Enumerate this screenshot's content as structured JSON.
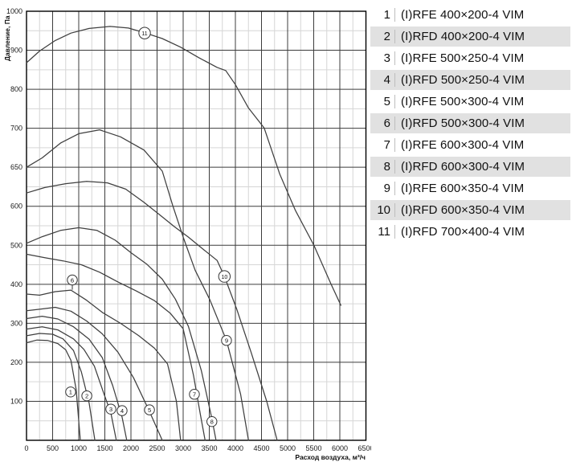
{
  "legend": {
    "rows": [
      {
        "num": "1",
        "label": "(I)RFE 400×200-4 VIM",
        "shaded": false
      },
      {
        "num": "2",
        "label": "(I)RFD 400×200-4 VIM",
        "shaded": true
      },
      {
        "num": "3",
        "label": "(I)RFE 500×250-4 VIM",
        "shaded": false
      },
      {
        "num": "4",
        "label": "(I)RFD 500×250-4 VIM",
        "shaded": true
      },
      {
        "num": "5",
        "label": "(I)RFE 500×300-4 VIM",
        "shaded": false
      },
      {
        "num": "6",
        "label": "(I)RFD 500×300-4 VIM",
        "shaded": true
      },
      {
        "num": "7",
        "label": "(I)RFE 600×300-4 VIM",
        "shaded": false
      },
      {
        "num": "8",
        "label": "(I)RFD 600×300-4 VIM",
        "shaded": true
      },
      {
        "num": "9",
        "label": "(I)RFE 600×350-4 VIM",
        "shaded": false
      },
      {
        "num": "10",
        "label": "(I)RFD 600×350-4 VIM",
        "shaded": true
      },
      {
        "num": "11",
        "label": "(I)RFD 700×400-4 VIM",
        "shaded": false
      }
    ]
  },
  "chart_data": {
    "type": "line",
    "title": "",
    "xlabel": "Расход воздуха, м³/ч",
    "ylabel": "Давление, Па",
    "xlim": [
      0,
      6500
    ],
    "x_major_step": 500,
    "x_minor_step": 250,
    "x_tick_labels": [
      "0",
      "500",
      "1000",
      "1500",
      "2000",
      "2500",
      "3000",
      "3500",
      "4000",
      "4500",
      "5000",
      "5500",
      "6000",
      "6500"
    ],
    "y_tick_values": [
      1000,
      900,
      800,
      700,
      650,
      600,
      500,
      400,
      300,
      200,
      100,
      0
    ],
    "y_tick_labeled": [
      1000,
      900,
      800,
      700,
      650,
      600,
      500,
      400,
      300,
      200,
      100
    ],
    "y_axis_note": "labeled ticks drawn equally spaced (non-uniform pressure scale), bottom line = 0 Pa unlabeled, minor gridline at midpoint of each step",
    "grid": true,
    "legend_position": "right-table",
    "series": [
      {
        "name": "(I)RFE 400×200-4 VIM",
        "marker": "1",
        "marker_at": [
          845,
          124
        ],
        "points": [
          [
            0,
            250
          ],
          [
            200,
            257
          ],
          [
            400,
            256
          ],
          [
            600,
            248
          ],
          [
            750,
            232
          ],
          [
            850,
            205
          ],
          [
            950,
            130
          ],
          [
            1030,
            0
          ]
        ]
      },
      {
        "name": "(I)RFD 400×200-4 VIM",
        "marker": "2",
        "marker_at": [
          1155,
          114
        ],
        "points": [
          [
            0,
            268
          ],
          [
            250,
            274
          ],
          [
            500,
            272
          ],
          [
            700,
            260
          ],
          [
            900,
            230
          ],
          [
            1050,
            175
          ],
          [
            1200,
            95
          ],
          [
            1310,
            0
          ]
        ]
      },
      {
        "name": "(I)RFE 500×250-4 VIM",
        "marker": "3",
        "marker_at": [
          1615,
          80
        ],
        "points": [
          [
            0,
            285
          ],
          [
            300,
            291
          ],
          [
            600,
            283
          ],
          [
            900,
            260
          ],
          [
            1100,
            233
          ],
          [
            1300,
            190
          ],
          [
            1480,
            120
          ],
          [
            1615,
            70
          ],
          [
            1720,
            0
          ]
        ]
      },
      {
        "name": "(I)RFD 500×250-4 VIM",
        "marker": "4",
        "marker_at": [
          1830,
          76
        ],
        "points": [
          [
            0,
            312
          ],
          [
            300,
            318
          ],
          [
            600,
            311
          ],
          [
            900,
            291
          ],
          [
            1200,
            259
          ],
          [
            1450,
            212
          ],
          [
            1650,
            140
          ],
          [
            1830,
            60
          ],
          [
            1920,
            0
          ]
        ]
      },
      {
        "name": "(I)RFE 500×300-4 VIM",
        "marker": "5",
        "marker_at": [
          2355,
          78
        ],
        "points": [
          [
            0,
            332
          ],
          [
            250,
            336
          ],
          [
            550,
            341
          ],
          [
            850,
            331
          ],
          [
            1150,
            306
          ],
          [
            1450,
            273
          ],
          [
            1750,
            226
          ],
          [
            2050,
            160
          ],
          [
            2350,
            75
          ],
          [
            2600,
            0
          ]
        ]
      },
      {
        "name": "(I)RFD 500×300-4 VIM",
        "marker": "6",
        "marker_at": [
          877,
          411
        ],
        "leader_to": [
          877,
          386
        ],
        "points": [
          [
            0,
            375
          ],
          [
            250,
            372
          ],
          [
            550,
            381
          ],
          [
            850,
            385
          ],
          [
            1150,
            359
          ],
          [
            1450,
            328
          ],
          [
            1800,
            300
          ],
          [
            2150,
            268
          ],
          [
            2450,
            236
          ],
          [
            2700,
            196
          ],
          [
            2870,
            100
          ],
          [
            2950,
            0
          ]
        ]
      },
      {
        "name": "(I)RFE 600×300-4 VIM",
        "marker": "7",
        "marker_at": [
          3215,
          118
        ],
        "points": [
          [
            0,
            477
          ],
          [
            350,
            468
          ],
          [
            700,
            460
          ],
          [
            1050,
            450
          ],
          [
            1400,
            431
          ],
          [
            1750,
            406
          ],
          [
            2100,
            383
          ],
          [
            2450,
            358
          ],
          [
            2750,
            326
          ],
          [
            3000,
            286
          ],
          [
            3200,
            165
          ],
          [
            3330,
            65
          ],
          [
            3420,
            0
          ]
        ]
      },
      {
        "name": "(I)RFD 600×300-4 VIM",
        "marker": "8",
        "marker_at": [
          3550,
          48
        ],
        "points": [
          [
            0,
            505
          ],
          [
            300,
            522
          ],
          [
            650,
            538
          ],
          [
            1000,
            545
          ],
          [
            1350,
            538
          ],
          [
            1700,
            513
          ],
          [
            2000,
            481
          ],
          [
            2300,
            452
          ],
          [
            2600,
            413
          ],
          [
            2850,
            362
          ],
          [
            3100,
            292
          ],
          [
            3350,
            178
          ],
          [
            3550,
            55
          ],
          [
            3630,
            0
          ]
        ]
      },
      {
        "name": "(I)RFE 600×350-4 VIM",
        "marker": "9",
        "marker_at": [
          3830,
          256
        ],
        "points": [
          [
            0,
            650
          ],
          [
            300,
            662
          ],
          [
            650,
            681
          ],
          [
            1000,
            693
          ],
          [
            1400,
            698
          ],
          [
            1800,
            689
          ],
          [
            2250,
            672
          ],
          [
            2600,
            645
          ],
          [
            2800,
            601
          ],
          [
            3000,
            521
          ],
          [
            3230,
            436
          ],
          [
            3510,
            361
          ],
          [
            3830,
            256
          ],
          [
            4100,
            118
          ],
          [
            4250,
            0
          ]
        ]
      },
      {
        "name": "(I)RFD 600×350-4 VIM",
        "marker": "10",
        "marker_at": [
          3790,
          420
        ],
        "points": [
          [
            0,
            617
          ],
          [
            350,
            624
          ],
          [
            750,
            629
          ],
          [
            1150,
            632
          ],
          [
            1550,
            630
          ],
          [
            1900,
            622
          ],
          [
            2250,
            605
          ],
          [
            2550,
            578
          ],
          [
            2830,
            548
          ],
          [
            3100,
            521
          ],
          [
            3400,
            488
          ],
          [
            3650,
            461
          ],
          [
            3790,
            420
          ],
          [
            4030,
            335
          ],
          [
            4300,
            226
          ],
          [
            4600,
            100
          ],
          [
            4800,
            0
          ]
        ]
      },
      {
        "name": "(I)RFD 700×400-4 VIM",
        "marker": "11",
        "marker_at": [
          2262,
          944
        ],
        "points": [
          [
            0,
            868
          ],
          [
            250,
            898
          ],
          [
            550,
            925
          ],
          [
            850,
            944
          ],
          [
            1200,
            956
          ],
          [
            1600,
            961
          ],
          [
            1950,
            957
          ],
          [
            2260,
            945
          ],
          [
            2600,
            930
          ],
          [
            2950,
            908
          ],
          [
            3300,
            881
          ],
          [
            3650,
            856
          ],
          [
            3815,
            848
          ],
          [
            4000,
            812
          ],
          [
            4250,
            752
          ],
          [
            4550,
            701
          ],
          [
            4850,
            641
          ],
          [
            5150,
            589
          ],
          [
            5500,
            501
          ],
          [
            5830,
            401
          ],
          [
            6020,
            346
          ]
        ]
      }
    ],
    "colors": {
      "curve": "#3f3f3f",
      "grid_major": "#3c3c3c",
      "grid_minor": "#d6d6d6",
      "frame": "#000000",
      "marker_fill": "#ffffff",
      "marker_stroke": "#333333",
      "legend_shade": "#e1e1e1"
    }
  }
}
